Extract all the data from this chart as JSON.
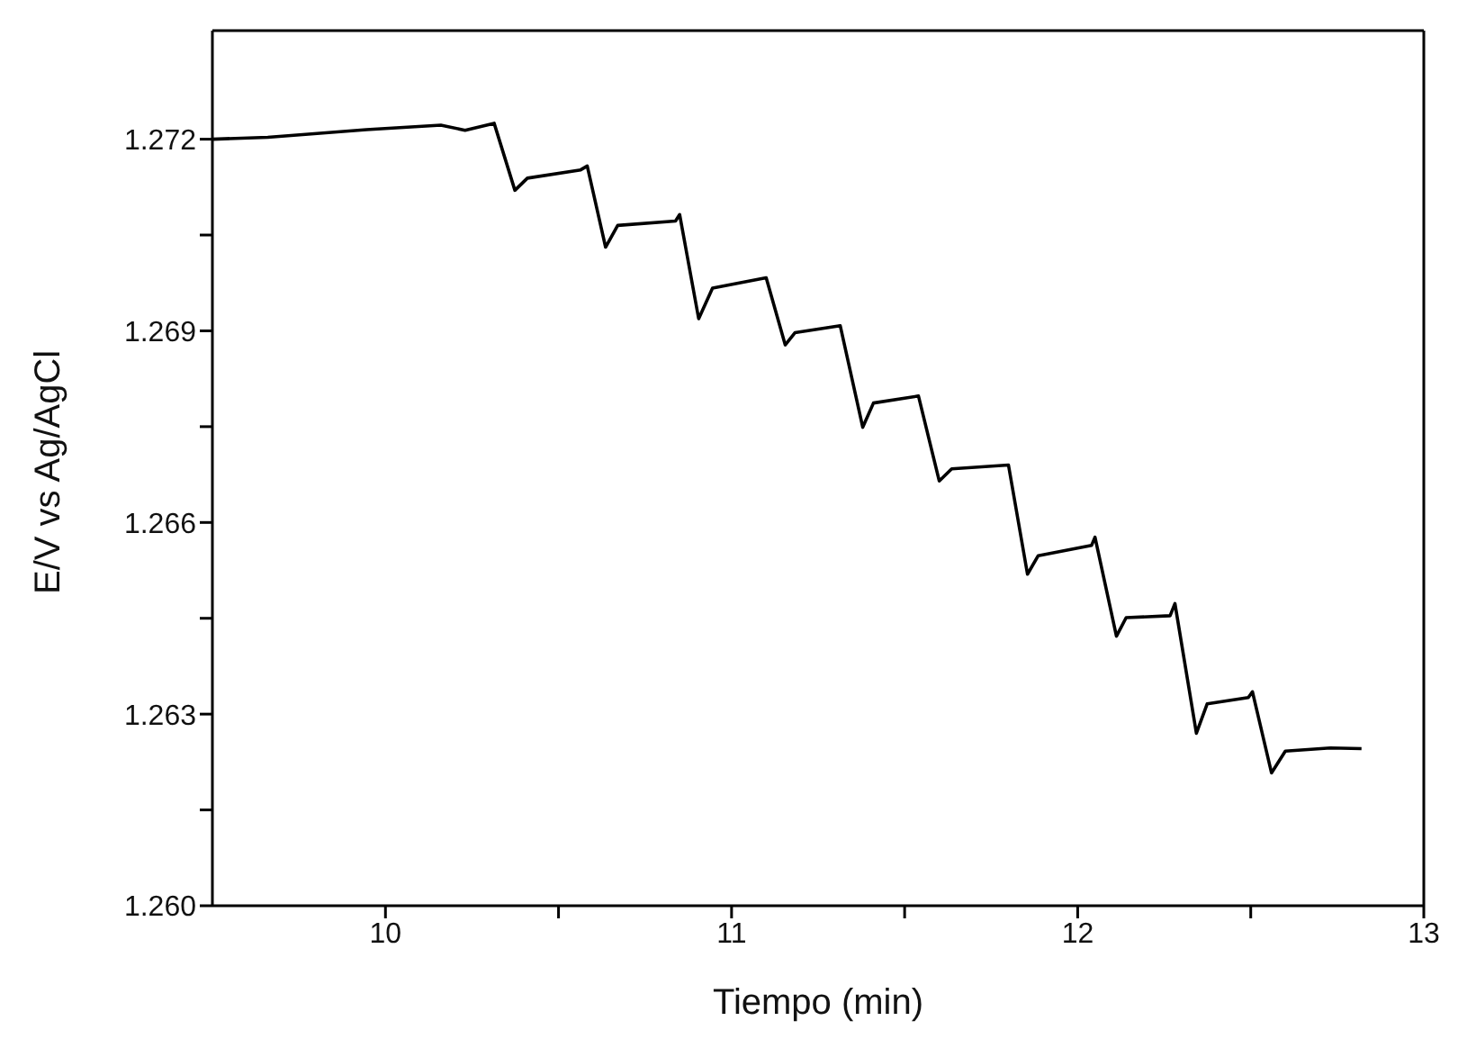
{
  "chart_data": {
    "type": "line",
    "xlabel": "Tiempo (min)",
    "ylabel": "E/V vs Ag/AgCl",
    "x": [
      9.5,
      9.66,
      9.945,
      10.16,
      10.23,
      10.314,
      10.374,
      10.41,
      10.564,
      10.583,
      10.636,
      10.671,
      10.838,
      10.85,
      10.905,
      10.945,
      11.1,
      11.155,
      11.183,
      11.314,
      11.379,
      11.41,
      11.54,
      11.6,
      11.636,
      11.8,
      11.855,
      11.886,
      12.04,
      12.05,
      12.112,
      12.14,
      12.267,
      12.281,
      12.343,
      12.374,
      12.493,
      12.505,
      12.56,
      12.6,
      12.73,
      12.82
    ],
    "series": [
      {
        "color": "#000000",
        "values": [
          1.272,
          1.27203,
          1.27215,
          1.27222,
          1.27214,
          1.27225,
          1.2712,
          1.27139,
          1.27152,
          1.27158,
          1.27031,
          1.27065,
          1.27072,
          1.27082,
          1.26919,
          1.26967,
          1.26983,
          1.26878,
          1.26897,
          1.26908,
          1.26749,
          1.26787,
          1.26798,
          1.26665,
          1.26684,
          1.2669,
          1.26519,
          1.26548,
          1.26564,
          1.26577,
          1.26422,
          1.26451,
          1.26454,
          1.26473,
          1.2627,
          1.26316,
          1.26326,
          1.26335,
          1.26208,
          1.26242,
          1.26247,
          1.26246
        ]
      }
    ],
    "xlim": [
      9.5,
      13
    ],
    "ylim": [
      1.26,
      1.2737
    ],
    "xticks": [
      10,
      {
        "value": 10.5,
        "label": null
      },
      11,
      {
        "value": 11.5,
        "label": null
      },
      12,
      {
        "value": 12.5,
        "label": null
      },
      13
    ],
    "yticks": [
      {
        "value": 1.26,
        "label": "1.260"
      },
      {
        "value": 1.2615,
        "label": null
      },
      1.263,
      {
        "value": 1.2645,
        "label": null
      },
      1.266,
      {
        "value": 1.2675,
        "label": null
      },
      1.269,
      {
        "value": 1.2705,
        "label": null
      },
      1.272
    ],
    "grid": false,
    "legend": false,
    "marker": "none",
    "line_style": "solid"
  }
}
